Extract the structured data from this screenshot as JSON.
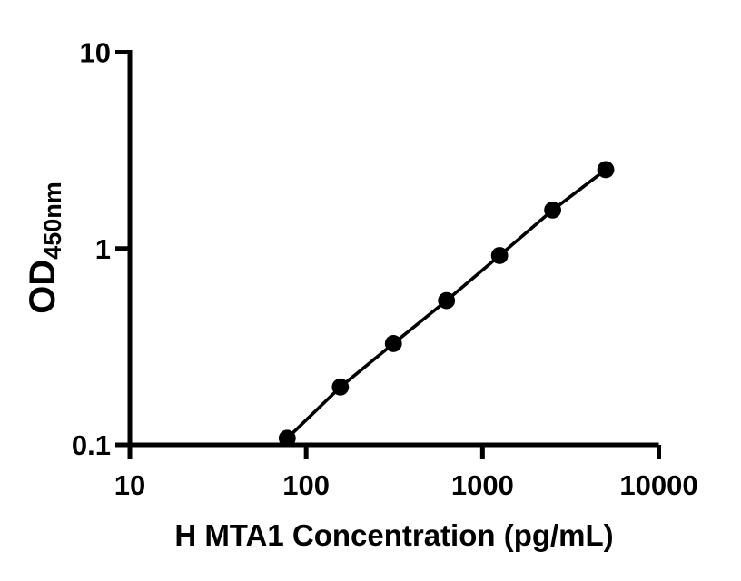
{
  "chart_data": {
    "type": "line",
    "title": "",
    "xlabel": "H MTA1 Concentration (pg/mL)",
    "ylabel_main": "OD",
    "ylabel_sub": "450nm",
    "x_scale": "log10",
    "y_scale": "log10",
    "xlim": [
      10,
      10000
    ],
    "ylim": [
      0.1,
      10
    ],
    "x_ticks": [
      10,
      100,
      1000,
      10000
    ],
    "x_tick_labels": [
      "10",
      "100",
      "1000",
      "10000"
    ],
    "y_ticks": [
      0.1,
      1,
      10
    ],
    "y_tick_labels": [
      "0.1",
      "1",
      "10"
    ],
    "grid": false,
    "legend": null,
    "axis_color": "#000000",
    "background_color": "#ffffff",
    "series": [
      {
        "marker": "filled-circle",
        "color": "#000000",
        "points": [
          {
            "x": 78.1,
            "y": 0.108
          },
          {
            "x": 156.3,
            "y": 0.197
          },
          {
            "x": 312.5,
            "y": 0.328
          },
          {
            "x": 625,
            "y": 0.543
          },
          {
            "x": 1250,
            "y": 0.921
          },
          {
            "x": 2500,
            "y": 1.57
          },
          {
            "x": 5000,
            "y": 2.52
          }
        ]
      }
    ]
  }
}
